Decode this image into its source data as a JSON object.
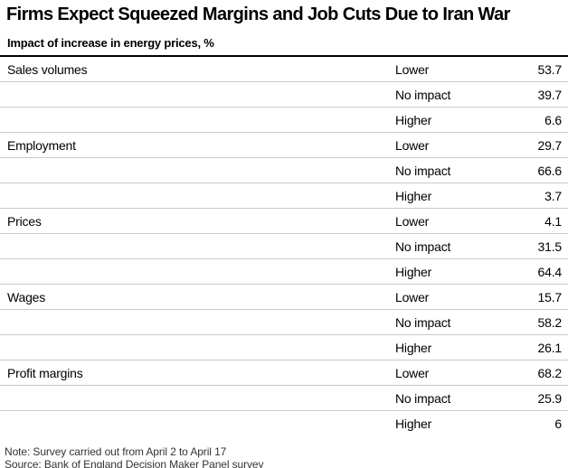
{
  "title": "Firms Expect Squeezed Margins and Job Cuts Due to Iran War",
  "subtitle": "Impact of increase in energy prices, %",
  "chart_data": {
    "type": "table",
    "title": "Firms Expect Squeezed Margins and Job Cuts Due to Iran War",
    "subtitle": "Impact of increase in energy prices, %",
    "unit": "%",
    "categories": [
      "Sales volumes",
      "Employment",
      "Prices",
      "Wages",
      "Profit margins"
    ],
    "row_labels": [
      "Lower",
      "No impact",
      "Higher"
    ],
    "series": [
      {
        "name": "Lower",
        "values": [
          53.7,
          29.7,
          4.1,
          15.7,
          68.2
        ]
      },
      {
        "name": "No impact",
        "values": [
          39.7,
          66.6,
          31.5,
          58.2,
          25.9
        ]
      },
      {
        "name": "Higher",
        "values": [
          6.6,
          3.7,
          64.4,
          26.1,
          6
        ]
      }
    ],
    "note": "Note: Survey carried out from April 2 to April 17",
    "source": "Source: Bank of England Decision Maker Panel survey"
  },
  "table": {
    "groups": [
      {
        "category": "Sales volumes",
        "rows": [
          {
            "label": "Lower",
            "value": "53.7"
          },
          {
            "label": "No impact",
            "value": "39.7"
          },
          {
            "label": "Higher",
            "value": "6.6"
          }
        ]
      },
      {
        "category": "Employment",
        "rows": [
          {
            "label": "Lower",
            "value": "29.7"
          },
          {
            "label": "No impact",
            "value": "66.6"
          },
          {
            "label": "Higher",
            "value": "3.7"
          }
        ]
      },
      {
        "category": "Prices",
        "rows": [
          {
            "label": "Lower",
            "value": "4.1"
          },
          {
            "label": "No impact",
            "value": "31.5"
          },
          {
            "label": "Higher",
            "value": "64.4"
          }
        ]
      },
      {
        "category": "Wages",
        "rows": [
          {
            "label": "Lower",
            "value": "15.7"
          },
          {
            "label": "No impact",
            "value": "58.2"
          },
          {
            "label": "Higher",
            "value": "26.1"
          }
        ]
      },
      {
        "category": "Profit margins",
        "rows": [
          {
            "label": "Lower",
            "value": "68.2"
          },
          {
            "label": "No impact",
            "value": "25.9"
          },
          {
            "label": "Higher",
            "value": "6"
          }
        ]
      }
    ]
  },
  "footer": {
    "note": "Note: Survey carried out from April 2 to April 17",
    "source": "Source: Bank of England Decision Maker Panel survey"
  },
  "colors": {
    "text": "#000000",
    "top_rule": "#000000",
    "divider": "#c9c9c9",
    "note_text": "#333333",
    "background": "#ffffff"
  }
}
